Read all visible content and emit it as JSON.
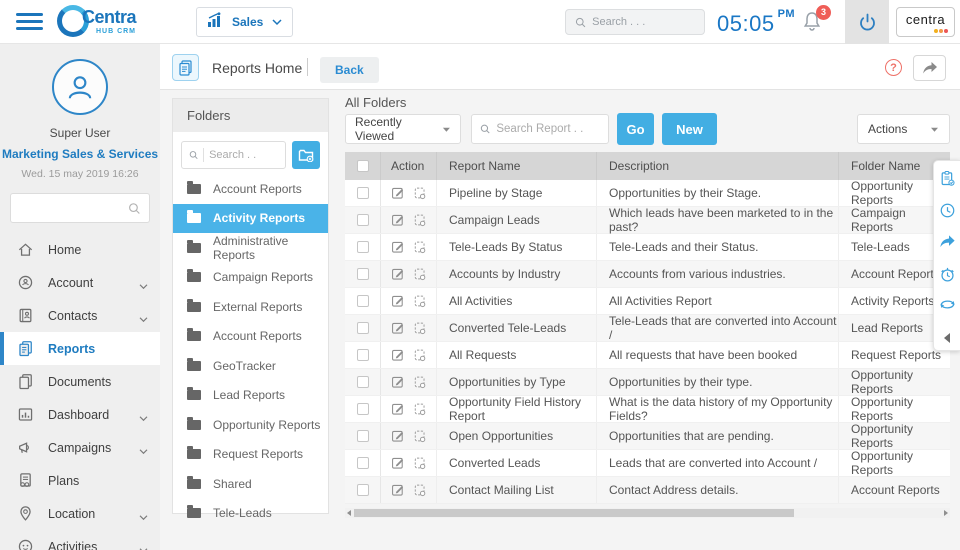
{
  "topbar": {
    "app_label": "Sales",
    "search_placeholder": "Search . . .",
    "time": "05:05",
    "meridiem": "PM",
    "notification_count": "3",
    "brand_small": "centra"
  },
  "logo": {
    "title": "Centra",
    "subtitle": "HUB CRM"
  },
  "subheader": {
    "title": "Reports Home",
    "back_label": "Back",
    "help_glyph": "?"
  },
  "sidebar": {
    "user": {
      "name": "Super User",
      "org": "Marketing Sales & Services",
      "datetime": "Wed. 15 may 2019 16:26"
    },
    "items": [
      {
        "label": "Home",
        "icon": "home",
        "chevron": false,
        "active": false
      },
      {
        "label": "Account",
        "icon": "account",
        "chevron": true,
        "active": false
      },
      {
        "label": "Contacts",
        "icon": "contacts",
        "chevron": true,
        "active": false
      },
      {
        "label": "Reports",
        "icon": "reports",
        "chevron": false,
        "active": true
      },
      {
        "label": "Documents",
        "icon": "documents",
        "chevron": false,
        "active": false
      },
      {
        "label": "Dashboard",
        "icon": "dashboard",
        "chevron": true,
        "active": false
      },
      {
        "label": "Campaigns",
        "icon": "campaigns",
        "chevron": true,
        "active": false
      },
      {
        "label": "Plans",
        "icon": "plans",
        "chevron": false,
        "active": false
      },
      {
        "label": "Location",
        "icon": "location",
        "chevron": true,
        "active": false
      },
      {
        "label": "Activities",
        "icon": "activities",
        "chevron": true,
        "active": false
      }
    ]
  },
  "folders": {
    "title": "Folders",
    "search_placeholder": "Search . .",
    "items": [
      {
        "label": "Account Reports",
        "active": false
      },
      {
        "label": "Activity Reports",
        "active": true
      },
      {
        "label": "Administrative Reports",
        "active": false
      },
      {
        "label": "Campaign Reports",
        "active": false
      },
      {
        "label": "External Reports",
        "active": false
      },
      {
        "label": "Account Reports",
        "active": false
      },
      {
        "label": "GeoTracker",
        "active": false
      },
      {
        "label": "Lead Reports",
        "active": false
      },
      {
        "label": "Opportunity Reports",
        "active": false
      },
      {
        "label": "Request Reports",
        "active": false
      },
      {
        "label": "Shared",
        "active": false
      },
      {
        "label": "Tele-Leads",
        "active": false
      }
    ]
  },
  "main": {
    "heading": "All Folders",
    "filter_value": "Recently Viewed",
    "search_placeholder": "Search Report . .",
    "go_label": "Go",
    "new_label": "New",
    "actions_label": "Actions",
    "table": {
      "columns": [
        "Action",
        "Report Name",
        "Description",
        "Folder Name"
      ],
      "rows": [
        {
          "name": "Pipeline by Stage",
          "description": "Opportunities by their Stage.",
          "folder": "Opportunity Reports"
        },
        {
          "name": "Campaign Leads",
          "description": "Which leads have been marketed to in the past?",
          "folder": "Campaign Reports"
        },
        {
          "name": "Tele-Leads By Status",
          "description": "Tele-Leads and their Status.",
          "folder": "Tele-Leads"
        },
        {
          "name": "Accounts by Industry",
          "description": "Accounts from various industries.",
          "folder": "Account Reports"
        },
        {
          "name": "All Activities",
          "description": "All Activities Report",
          "folder": "Activity Reports"
        },
        {
          "name": "Converted Tele-Leads",
          "description": "Tele-Leads that are converted into Account /",
          "folder": "Lead Reports"
        },
        {
          "name": "All Requests",
          "description": "All requests that have been booked",
          "folder": "Request Reports"
        },
        {
          "name": "Opportunities by Type",
          "description": "Opportunities by their type.",
          "folder": "Opportunity Reports"
        },
        {
          "name": "Opportunity Field History Report",
          "description": "What is the data history of my Opportunity Fields?",
          "folder": "Opportunity Reports"
        },
        {
          "name": "Open Opportunities",
          "description": "Opportunities that are pending.",
          "folder": "Opportunity Reports"
        },
        {
          "name": "Converted Leads",
          "description": "Leads that are converted into Account /",
          "folder": "Opportunity Reports"
        },
        {
          "name": "Contact Mailing List",
          "description": "Contact Address details.",
          "folder": "Account Reports"
        }
      ]
    }
  },
  "right_toolbar": {
    "icons": [
      "report-clipboard",
      "history",
      "share",
      "reminder",
      "sync"
    ]
  },
  "colors": {
    "accent_blue": "#1b75bb",
    "button_blue": "#42aee3",
    "selected_blue": "#4ab3e8",
    "badge_red": "#ef5d57",
    "help_red": "#ee7168"
  }
}
